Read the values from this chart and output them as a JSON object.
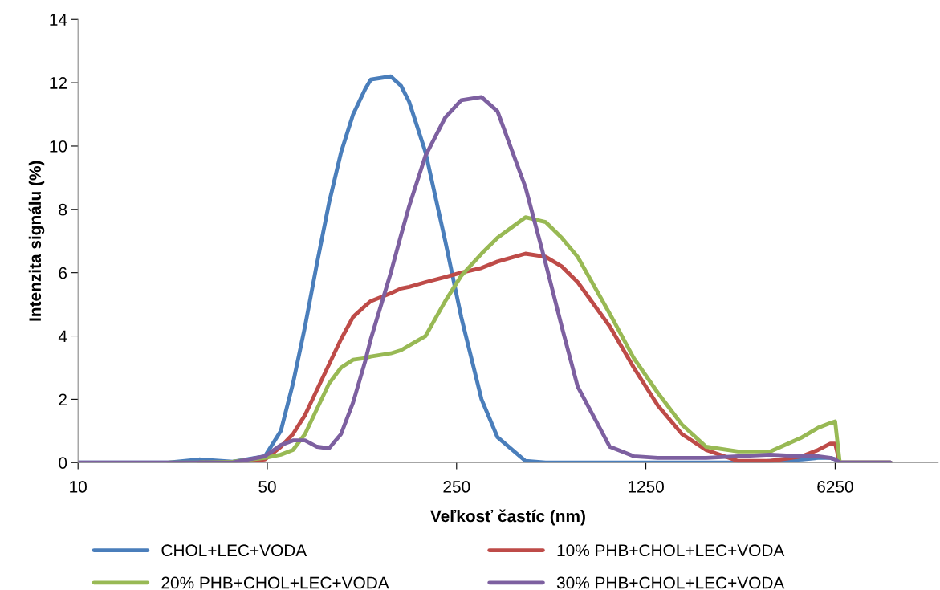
{
  "chart_data": {
    "type": "line",
    "xlabel": "Veľkosť častíc (nm)",
    "ylabel": "Intenzita signálu (%)",
    "x": [
      10,
      14.4,
      21.6,
      28,
      37.3,
      49,
      56.1,
      62.2,
      68.9,
      76.3,
      84.5,
      93.6,
      103.7,
      114.9,
      120.5,
      142.9,
      156,
      167,
      192,
      227,
      260,
      309,
      354,
      449,
      533,
      611,
      700,
      920,
      1128,
      1385,
      1699,
      2085,
      2738,
      3596,
      4724,
      5411,
      6000,
      6250,
      6500,
      10000
    ],
    "series": [
      {
        "name": "CHOL+LEC+VODA",
        "color": "#4a7ebb",
        "values": [
          0,
          0,
          0,
          0.1,
          0.03,
          0.2,
          1.0,
          2.5,
          4.3,
          6.3,
          8.2,
          9.8,
          11.0,
          11.8,
          12.1,
          12.2,
          11.9,
          11.4,
          9.8,
          7.0,
          4.6,
          2.0,
          0.8,
          0.05,
          0,
          0,
          0,
          0,
          0,
          0,
          0,
          0,
          0,
          0.05,
          0.1,
          0.15,
          0.15,
          0.1,
          0,
          0
        ]
      },
      {
        "name": "10% PHB+CHOL+LEC+VODA",
        "color": "#be4b48",
        "values": [
          null,
          null,
          null,
          0,
          0,
          0.1,
          0.5,
          0.9,
          1.5,
          2.3,
          3.1,
          3.9,
          4.6,
          4.95,
          5.1,
          5.35,
          5.5,
          5.55,
          5.7,
          5.86,
          6.0,
          6.15,
          6.35,
          6.6,
          6.5,
          6.2,
          5.7,
          4.3,
          3.0,
          1.8,
          0.9,
          0.4,
          0.05,
          0.05,
          0.2,
          0.4,
          0.6,
          0.6,
          0,
          0
        ]
      },
      {
        "name": "20% PHB+CHOL+LEC+VODA",
        "color": "#98b954",
        "values": [
          null,
          null,
          0,
          0,
          0.03,
          0.15,
          0.25,
          0.4,
          0.9,
          1.7,
          2.5,
          3.0,
          3.25,
          3.3,
          3.35,
          3.45,
          3.55,
          3.7,
          4.0,
          5.1,
          5.9,
          6.6,
          7.1,
          7.75,
          7.6,
          7.1,
          6.5,
          4.7,
          3.3,
          2.2,
          1.2,
          0.5,
          0.35,
          0.35,
          0.8,
          1.1,
          1.25,
          1.3,
          0,
          0
        ]
      },
      {
        "name": "30% PHB+CHOL+LEC+VODA",
        "color": "#7d60a0",
        "values": [
          0,
          0,
          0,
          0,
          0,
          0.2,
          0.55,
          0.7,
          0.7,
          0.5,
          0.45,
          0.9,
          1.9,
          3.2,
          3.9,
          6.0,
          7.2,
          8.1,
          9.7,
          10.9,
          11.45,
          11.55,
          11.1,
          8.7,
          6.3,
          4.3,
          2.4,
          0.5,
          0.2,
          0.15,
          0.15,
          0.15,
          0.2,
          0.25,
          0.2,
          0.2,
          0.15,
          0.1,
          0,
          0
        ]
      }
    ],
    "log": "x",
    "xlim": [
      10,
      15000
    ],
    "xticks": [
      10,
      50,
      250,
      1250,
      6250
    ],
    "ylim": [
      0,
      14
    ],
    "yticks": [
      0,
      2,
      4,
      6,
      8,
      10,
      12,
      14
    ],
    "grid": false,
    "legend": "bottom",
    "marker": "none",
    "line_style": "solid"
  }
}
